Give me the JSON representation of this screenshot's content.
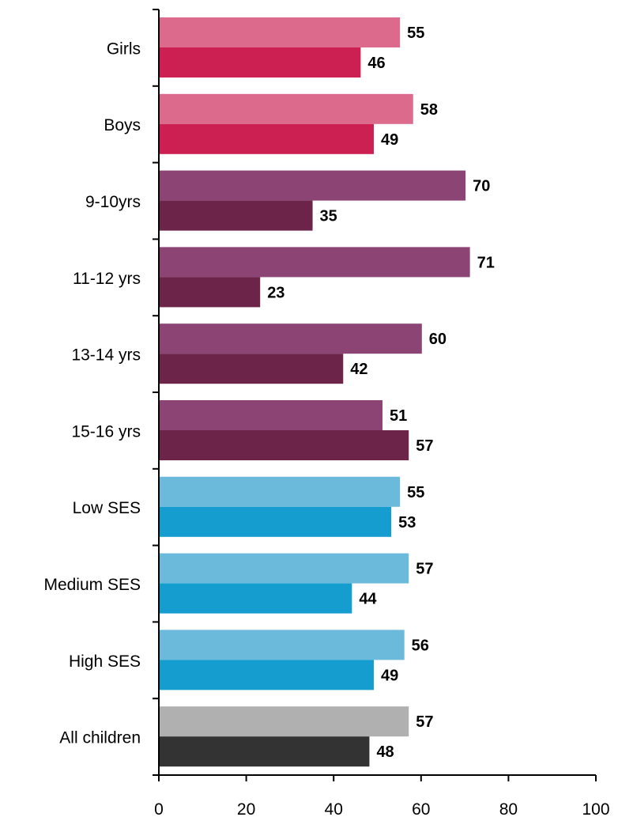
{
  "chart_data": {
    "type": "bar",
    "orientation": "horizontal",
    "categories": [
      "Girls",
      "Boys",
      "9-10yrs",
      "11-12 yrs",
      "13-14 yrs",
      "15-16 yrs",
      "Low SES",
      "Medium SES",
      "High SES",
      "All children"
    ],
    "series": [
      {
        "values": [
          55,
          58,
          70,
          71,
          60,
          51,
          55,
          57,
          56,
          57
        ]
      },
      {
        "values": [
          46,
          49,
          35,
          23,
          42,
          57,
          53,
          44,
          49,
          48
        ]
      }
    ],
    "bar_colors": [
      [
        "#db6a8c",
        "#cc1f52"
      ],
      [
        "#db6a8c",
        "#cc1f52"
      ],
      [
        "#8b4474",
        "#6d2449"
      ],
      [
        "#8b4474",
        "#6d2449"
      ],
      [
        "#8b4474",
        "#6d2449"
      ],
      [
        "#8b4474",
        "#6d2449"
      ],
      [
        "#6bbadb",
        "#169dd0"
      ],
      [
        "#6bbadb",
        "#169dd0"
      ],
      [
        "#6bbadb",
        "#169dd0"
      ],
      [
        "#b0b0b0",
        "#333333"
      ]
    ],
    "x_ticks": [
      0,
      20,
      40,
      60,
      80,
      100
    ],
    "xlim": [
      0,
      100
    ],
    "grid": false,
    "legend": "none",
    "title": "",
    "xlabel": "",
    "ylabel": ""
  }
}
